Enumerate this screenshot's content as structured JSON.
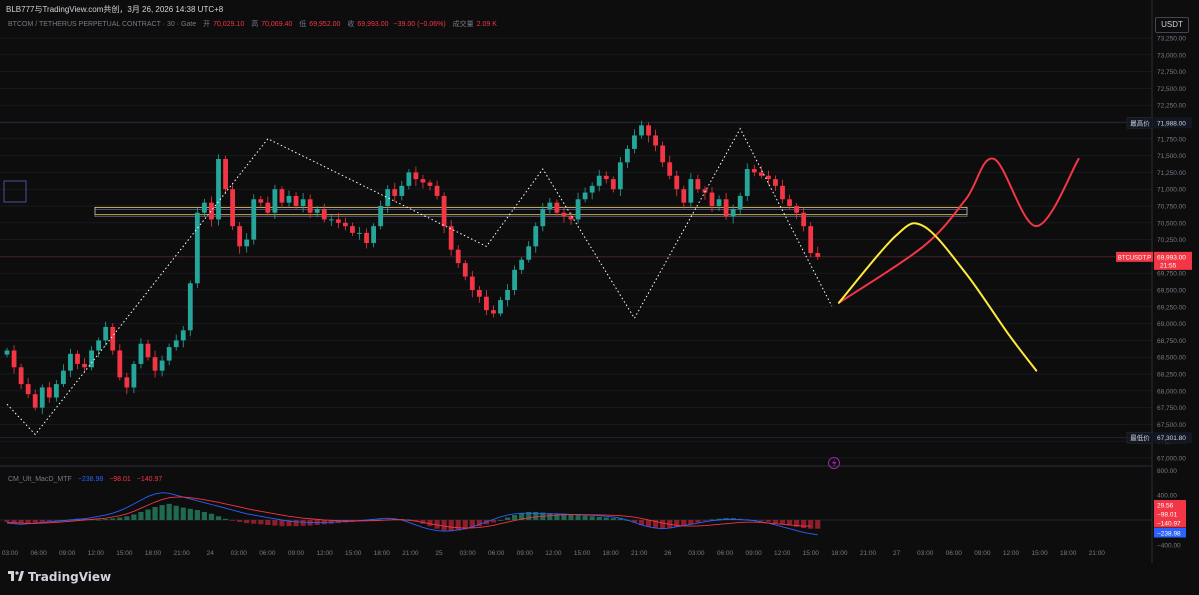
{
  "header": {
    "text": "BLB777与TradingView.com共创，3月 26, 2026 14:38 UTC+8"
  },
  "legend": {
    "symbol": "BTCOM / TETHERUS PERPETUAL CONTRACT · 30 · Gate",
    "open_label": "开",
    "open": "70,029.10",
    "high_label": "高",
    "high": "70,069.40",
    "low_label": "低",
    "low": "69,952.00",
    "close_label": "收",
    "close": "69,993.00",
    "change": "−39.00 (−0.06%)",
    "volume_label": "成交量",
    "volume": "2.09 K"
  },
  "currency": "USDT",
  "price_tags": {
    "high_label": "最高价",
    "high_value": "71,988.00",
    "low_label": "最低价",
    "low_value": "67,301.80",
    "symbol_label": "BTCUSDT.P",
    "last_value": "69,993.00",
    "countdown": "21:55"
  },
  "macd": {
    "title": "CM_Ult_MacD_MTF",
    "value1": "−238.98",
    "value2": "−98.01",
    "value3": "−140.97",
    "axis_labels": [
      "800.00",
      "400.00",
      "−400.00"
    ],
    "tags": [
      "29.56",
      "−98.01",
      "−140.97",
      "−238.98"
    ]
  },
  "logo": {
    "text": "TradingView"
  },
  "colors": {
    "up": "#26a69a",
    "down": "#f23645",
    "bg": "#0d0d0d",
    "zigzag": "#ffffff",
    "forecast_up": "#f23645",
    "forecast_down": "#ffeb3b",
    "zone": "#f5d76e"
  },
  "chart_data": {
    "type": "candlestick",
    "price_axis": {
      "ylim": [
        67000,
        73250
      ],
      "ticks": [
        "73,250.00",
        "73,000.00",
        "72,750.00",
        "72,500.00",
        "72,250.00",
        "72,000.00",
        "71,750.00",
        "71,500.00",
        "71,250.00",
        "71,000.00",
        "70,750.00",
        "70,500.00",
        "70,250.00",
        "70,000.00",
        "69,750.00",
        "69,500.00",
        "69,250.00",
        "69,000.00",
        "68,750.00",
        "68,500.00",
        "68,250.00",
        "68,000.00",
        "67,750.00",
        "67,500.00",
        "67,250.00",
        "67,000.00"
      ],
      "tick_values": [
        73250,
        73000,
        72750,
        72500,
        72250,
        72000,
        71750,
        71500,
        71250,
        71000,
        70750,
        70500,
        70250,
        70000,
        69750,
        69500,
        69250,
        69000,
        68750,
        68500,
        68250,
        68000,
        67750,
        67500,
        67250,
        67000
      ]
    },
    "time_axis": {
      "labels": [
        "03:00",
        "06:00",
        "09:00",
        "12:00",
        "15:00",
        "18:00",
        "21:00",
        "24",
        "03:00",
        "06:00",
        "09:00",
        "12:00",
        "15:00",
        "18:00",
        "21:00",
        "25",
        "03:00",
        "06:00",
        "09:00",
        "12:00",
        "15:00",
        "18:00",
        "21:00",
        "26",
        "03:00",
        "06:00",
        "09:00",
        "12:00",
        "15:00",
        "18:00",
        "21:00",
        "27",
        "03:00",
        "06:00",
        "09:00",
        "12:00",
        "15:00",
        "18:00",
        "21:00"
      ]
    },
    "close_series": [
      68600,
      68350,
      68100,
      67950,
      67750,
      68050,
      67900,
      68100,
      68300,
      68550,
      68400,
      68350,
      68600,
      68750,
      68950,
      68600,
      68200,
      68050,
      68400,
      68700,
      68500,
      68300,
      68450,
      68650,
      68750,
      68900,
      69600,
      70650,
      70800,
      70550,
      71450,
      71000,
      70450,
      70150,
      70250,
      70850,
      70800,
      70650,
      71000,
      70800,
      70900,
      70750,
      70850,
      70650,
      70700,
      70550,
      70550,
      70500,
      70450,
      70350,
      70350,
      70200,
      70450,
      70750,
      71000,
      70900,
      71050,
      71250,
      71150,
      71100,
      71050,
      70900,
      70450,
      70100,
      69900,
      69700,
      69500,
      69400,
      69200,
      69150,
      69350,
      69500,
      69800,
      69950,
      70150,
      70450,
      70700,
      70800,
      70650,
      70600,
      70550,
      70850,
      70950,
      71050,
      71200,
      71150,
      71000,
      71400,
      71600,
      71800,
      71950,
      71800,
      71650,
      71400,
      71200,
      71000,
      70800,
      71150,
      71000,
      70950,
      70750,
      70850,
      70600,
      70700,
      70900,
      71300,
      71250,
      71200,
      71150,
      71050,
      70850,
      70750,
      70650,
      70450,
      70050,
      69993
    ],
    "resistance_zone": [
      70650,
      70700
    ],
    "highest": 71988.0,
    "lowest": 67301.8,
    "last": 69993.0,
    "zigzag_points": [
      [
        0,
        67800
      ],
      [
        4,
        67350
      ],
      [
        37,
        71750
      ],
      [
        68,
        70150
      ],
      [
        76,
        71300
      ],
      [
        89,
        69080
      ],
      [
        104,
        71900
      ],
      [
        117,
        69260
      ]
    ],
    "forecast_up_path": [
      [
        118,
        69310
      ],
      [
        130,
        70150
      ],
      [
        136,
        70850
      ],
      [
        140,
        71450
      ],
      [
        146,
        70450
      ],
      [
        152,
        71450
      ]
    ],
    "forecast_down_path": [
      [
        118,
        69310
      ],
      [
        126,
        70300
      ],
      [
        130,
        70450
      ],
      [
        136,
        69750
      ],
      [
        142,
        68850
      ],
      [
        146,
        68300
      ]
    ],
    "macd_hist": [
      -30,
      -40,
      -45,
      -50,
      -40,
      -30,
      -20,
      -10,
      0,
      10,
      20,
      15,
      10,
      5,
      15,
      25,
      40,
      60,
      90,
      130,
      170,
      210,
      240,
      260,
      230,
      200,
      180,
      160,
      130,
      100,
      60,
      20,
      -10,
      -30,
      -50,
      -60,
      -70,
      -80,
      -90,
      -100,
      -100,
      -100,
      -95,
      -90,
      -80,
      -70,
      -60,
      -50,
      -40,
      -30,
      -20,
      -10,
      0,
      5,
      10,
      20,
      15,
      10,
      -20,
      -60,
      -100,
      -140,
      -170,
      -180,
      -170,
      -150,
      -130,
      -100,
      -70,
      -40,
      0,
      40,
      80,
      110,
      130,
      130,
      120,
      110,
      100,
      100,
      90,
      80,
      70,
      60,
      50,
      40,
      30,
      20,
      0,
      -40,
      -80,
      -110,
      -130,
      -140,
      -130,
      -110,
      -90,
      -70,
      -40,
      -10,
      10,
      20,
      30,
      30,
      20,
      10,
      0,
      -10,
      -30,
      -50,
      -70,
      -90,
      -110,
      -130,
      -140,
      -140
    ],
    "macd_line": [
      -50,
      -60,
      -70,
      -60,
      -50,
      -40,
      -30,
      -20,
      -10,
      0,
      10,
      20,
      40,
      60,
      80,
      110,
      150,
      200,
      260,
      320,
      380,
      420,
      440,
      430,
      400,
      370,
      340,
      310,
      280,
      250,
      220,
      190,
      160,
      130,
      100,
      80,
      60,
      40,
      20,
      0,
      -20,
      -30,
      -35,
      -40,
      -40,
      -40,
      -35,
      -30,
      -25,
      -20,
      -10,
      0,
      10,
      20,
      30,
      20,
      0,
      -40,
      -80,
      -120,
      -150,
      -170,
      -180,
      -175,
      -160,
      -140,
      -110,
      -70,
      -30,
      10,
      50,
      80,
      100,
      110,
      110,
      105,
      100,
      100,
      100,
      95,
      90,
      85,
      80,
      75,
      70,
      60,
      50,
      30,
      0,
      -40,
      -80,
      -110,
      -130,
      -140,
      -130,
      -110,
      -90,
      -70,
      -50,
      -30,
      -10,
      0,
      10,
      10,
      5,
      0,
      -10,
      -30,
      -50,
      -80,
      -110,
      -140,
      -170,
      -200,
      -220,
      -239
    ],
    "signal_line": [
      -40,
      -45,
      -50,
      -55,
      -55,
      -50,
      -45,
      -40,
      -30,
      -20,
      -10,
      0,
      10,
      20,
      30,
      50,
      70,
      100,
      140,
      190,
      240,
      290,
      330,
      360,
      370,
      370,
      360,
      345,
      325,
      305,
      285,
      260,
      235,
      210,
      185,
      160,
      140,
      120,
      100,
      80,
      60,
      45,
      30,
      20,
      10,
      0,
      -5,
      -10,
      -12,
      -14,
      -14,
      -12,
      -10,
      -6,
      0,
      4,
      4,
      -5,
      -20,
      -40,
      -60,
      -80,
      -100,
      -115,
      -125,
      -130,
      -128,
      -120,
      -105,
      -85,
      -60,
      -35,
      -10,
      15,
      35,
      50,
      60,
      70,
      78,
      84,
      88,
      88,
      86,
      84,
      82,
      80,
      76,
      70,
      60,
      45,
      25,
      0,
      -25,
      -50,
      -70,
      -85,
      -95,
      -98,
      -95,
      -90,
      -80,
      -70,
      -60,
      -50,
      -40,
      -35,
      -35,
      -40,
      -50,
      -60,
      -70,
      -80,
      -90,
      -98,
      -98
    ]
  }
}
